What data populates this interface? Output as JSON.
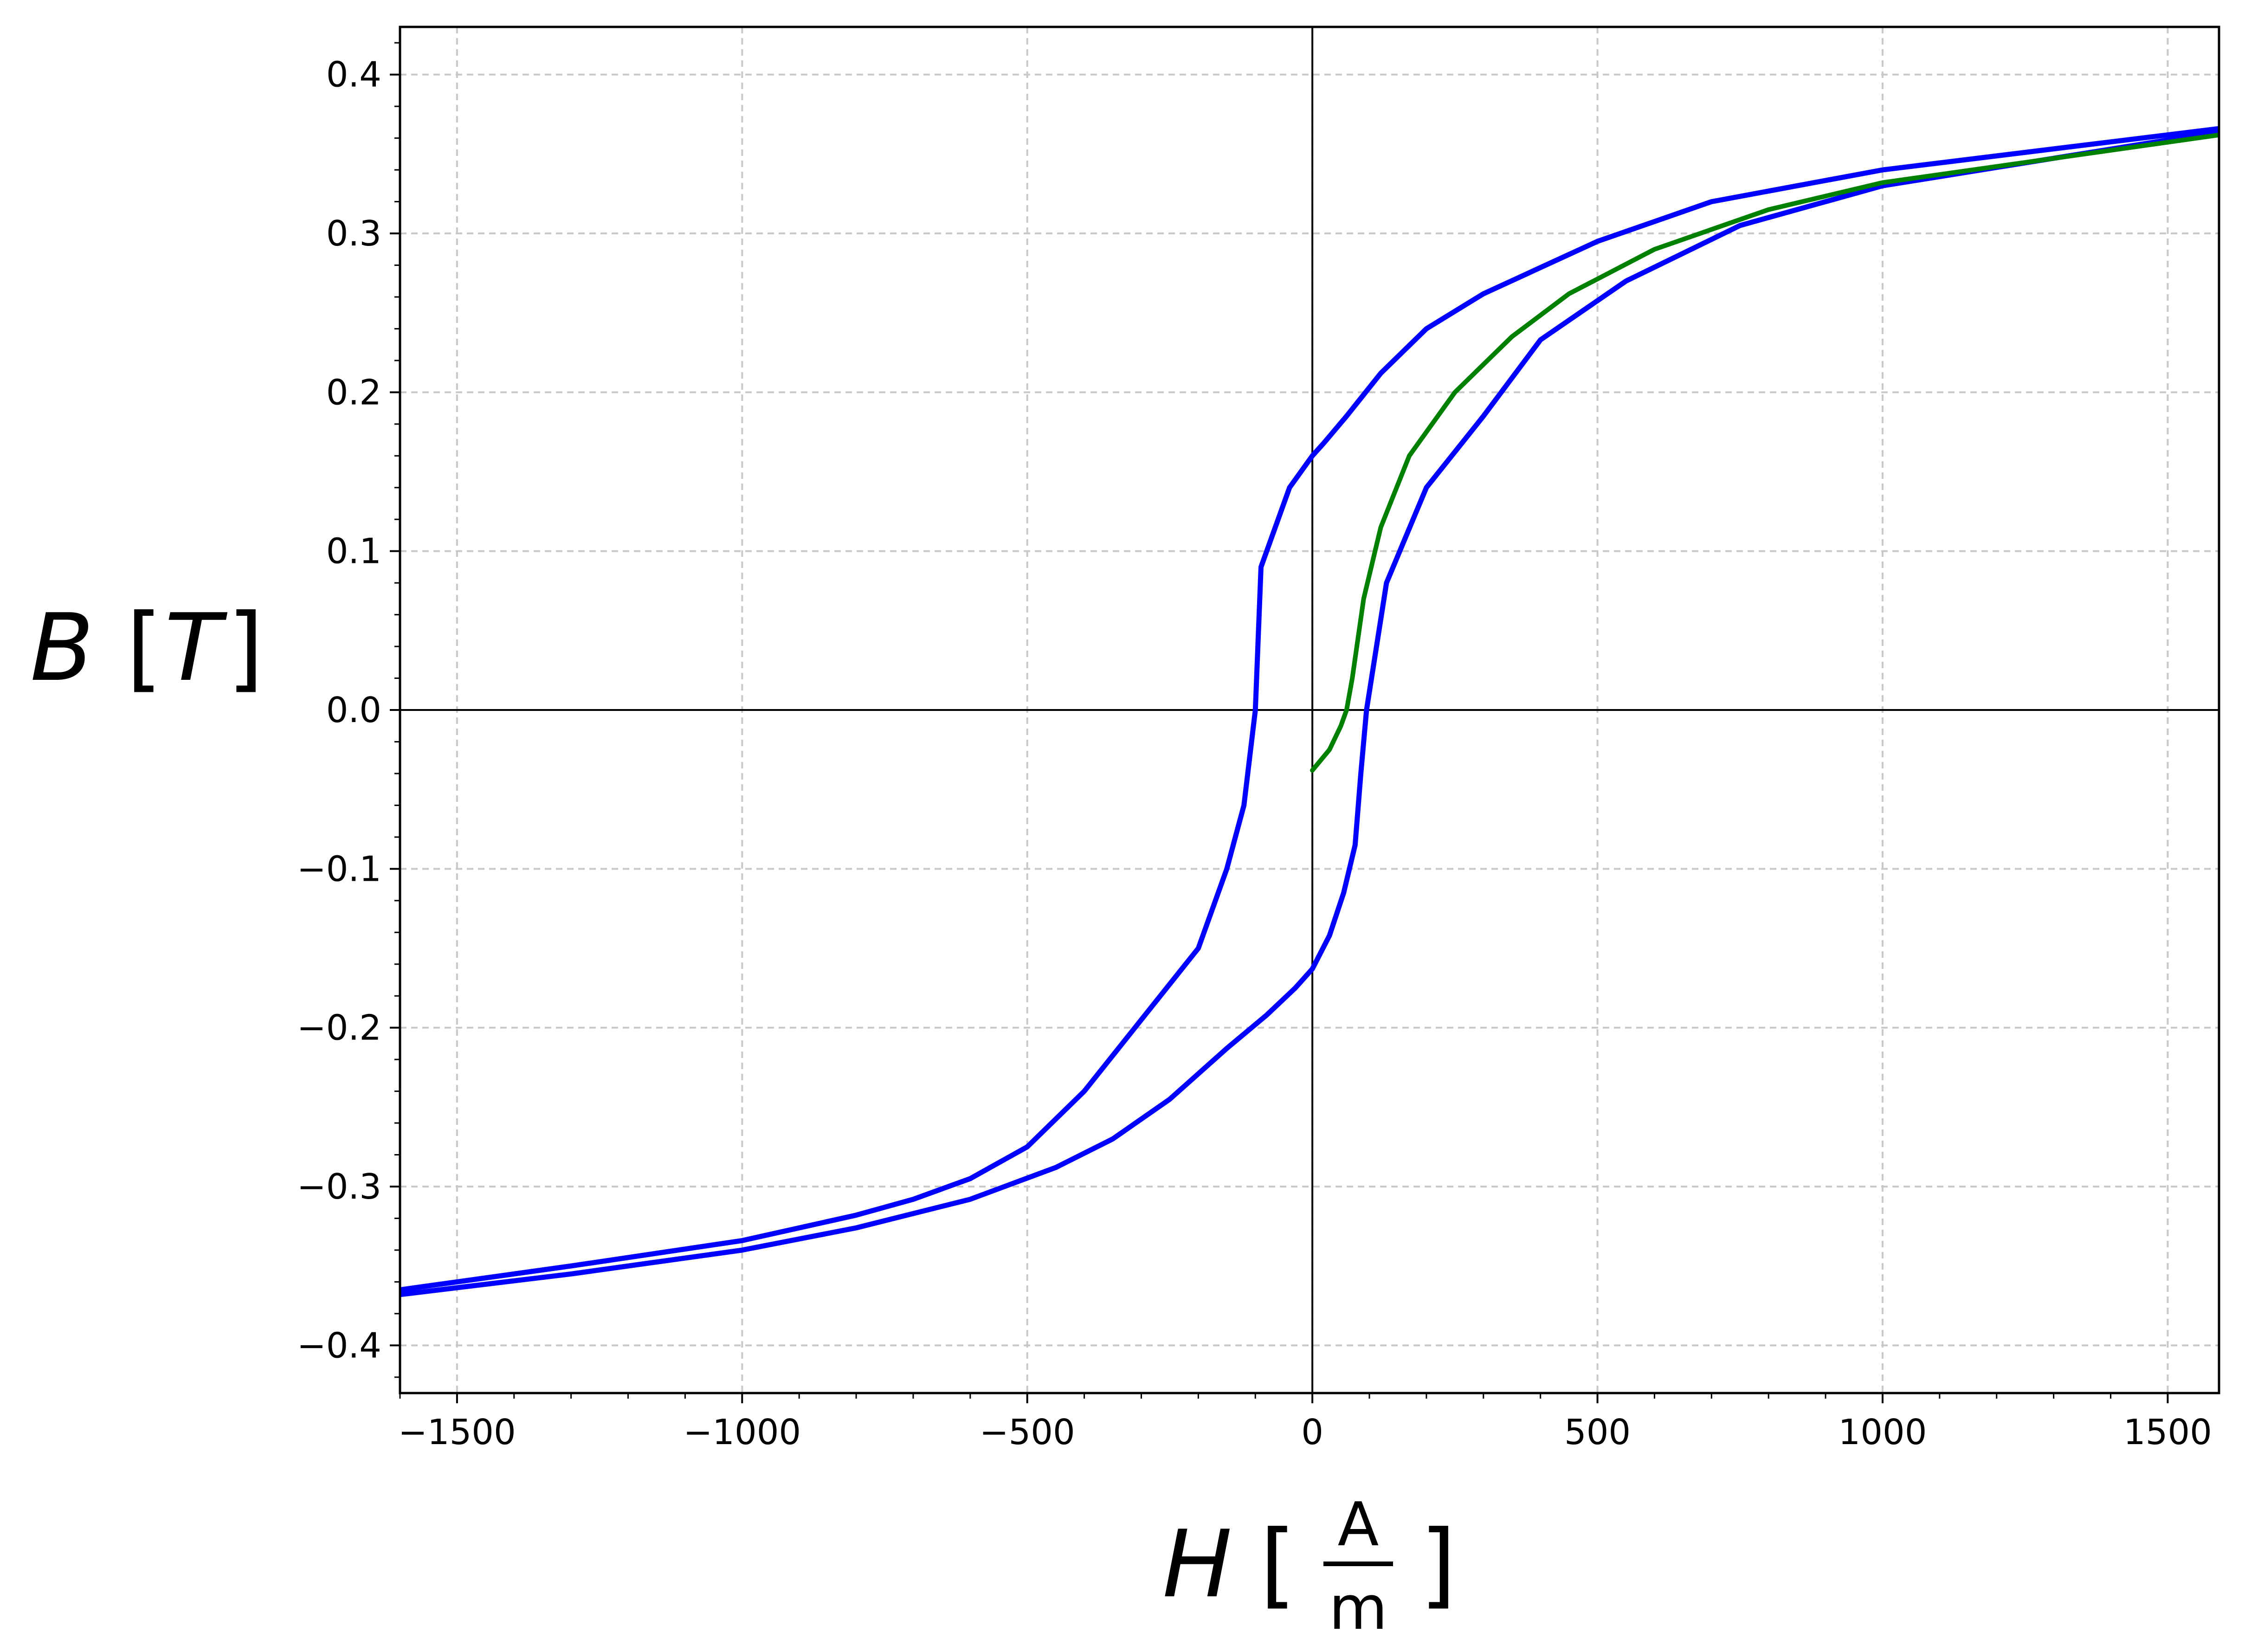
{
  "chart_data": {
    "type": "line",
    "title": "",
    "xlabel": {
      "symbol": "H",
      "unit_numerator": "A",
      "unit_denominator": "m"
    },
    "ylabel": {
      "symbol": "B",
      "unit": "T"
    },
    "xlim": [
      -1600,
      1590
    ],
    "ylim": [
      -0.43,
      0.43
    ],
    "grid": true,
    "x_ticks": [
      -1500,
      -1000,
      -500,
      0,
      500,
      1000,
      1500
    ],
    "x_tick_labels": [
      "−1500",
      "−1000",
      "−500",
      "0",
      "500",
      "1000",
      "1500"
    ],
    "y_ticks": [
      0.4,
      0.3,
      0.2,
      0.1,
      0.0,
      -0.1,
      -0.2,
      -0.3,
      -0.4
    ],
    "y_tick_labels": [
      "0.4",
      "0.3",
      "0.2",
      "0.1",
      "0.0",
      "−0.1",
      "−0.2",
      "−0.3",
      "−0.4"
    ],
    "series": [
      {
        "color": "#0000ff",
        "x": [
          1590,
          1000,
          700,
          500,
          300,
          200,
          120,
          60,
          20,
          0,
          -40,
          -90,
          -100,
          -120,
          -150,
          -200,
          -300,
          -400,
          -500,
          -600,
          -700,
          -800,
          -1000,
          -1300,
          -1600
        ],
        "y": [
          0.366,
          0.34,
          0.32,
          0.295,
          0.262,
          0.24,
          0.212,
          0.185,
          0.168,
          0.16,
          0.14,
          0.09,
          0.0,
          -0.06,
          -0.1,
          -0.15,
          -0.195,
          -0.24,
          -0.275,
          -0.295,
          -0.308,
          -0.318,
          -0.334,
          -0.35,
          -0.365
        ]
      },
      {
        "color": "#0000ff",
        "x": [
          -1600,
          -1300,
          -1000,
          -800,
          -600,
          -450,
          -350,
          -250,
          -150,
          -80,
          -30,
          0,
          30,
          55,
          75,
          85,
          95,
          130,
          200,
          300,
          400,
          550,
          750,
          1000,
          1590
        ],
        "y": [
          -0.368,
          -0.355,
          -0.34,
          -0.326,
          -0.308,
          -0.288,
          -0.27,
          -0.245,
          -0.213,
          -0.192,
          -0.175,
          -0.163,
          -0.142,
          -0.115,
          -0.085,
          -0.04,
          0.0,
          0.08,
          0.14,
          0.185,
          0.233,
          0.27,
          0.305,
          0.33,
          0.364
        ]
      },
      {
        "color": "#008000",
        "x": [
          0,
          30,
          50,
          60,
          70,
          90,
          120,
          170,
          250,
          350,
          450,
          600,
          800,
          1000,
          1590
        ],
        "y": [
          -0.038,
          -0.025,
          -0.01,
          0.0,
          0.02,
          0.07,
          0.115,
          0.16,
          0.2,
          0.235,
          0.262,
          0.29,
          0.315,
          0.332,
          0.362
        ]
      }
    ]
  }
}
